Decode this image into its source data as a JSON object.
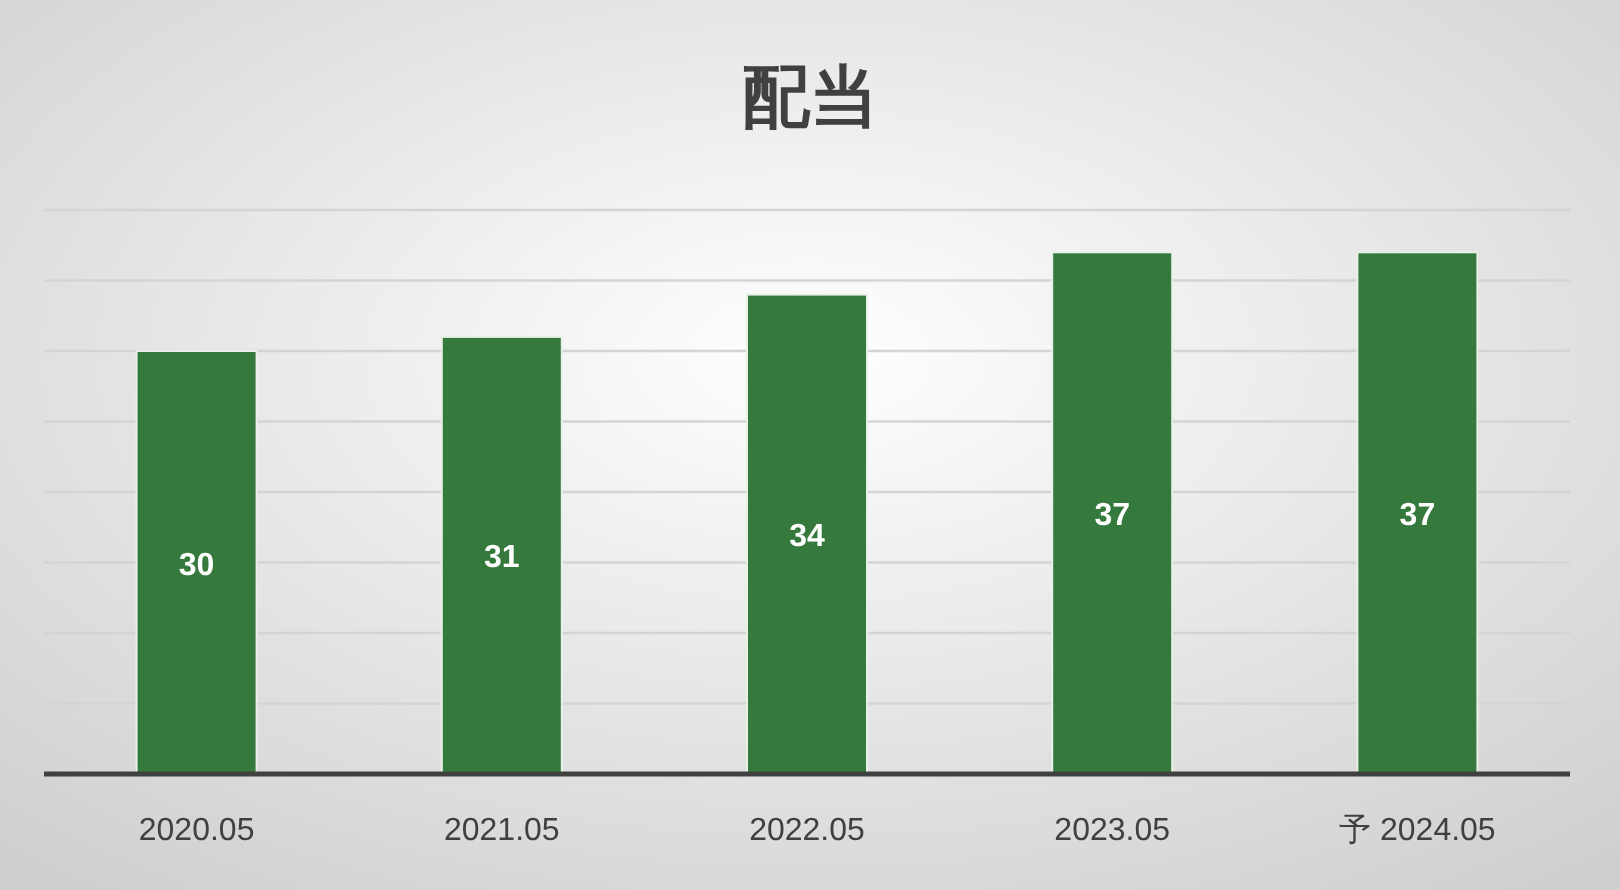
{
  "chart_data": {
    "type": "bar",
    "title": "配当",
    "categories": [
      "2020.05",
      "2021.05",
      "2022.05",
      "2023.05",
      "予 2024.05"
    ],
    "values": [
      30,
      31,
      34,
      37,
      37
    ],
    "color": "#357a3c",
    "ylim": [
      0,
      40
    ],
    "yticks": [
      {
        "value": 0,
        "label": null
      },
      {
        "value": 5,
        "label": null
      },
      {
        "value": 10,
        "label": null
      },
      {
        "value": 15,
        "label": null
      },
      {
        "value": 20,
        "label": null
      },
      {
        "value": 25,
        "label": null
      },
      {
        "value": 30,
        "label": null
      },
      {
        "value": 35,
        "label": null
      },
      {
        "value": 40,
        "label": null
      }
    ],
    "grid": "y",
    "data_labels": true,
    "tick_labels": "x"
  }
}
